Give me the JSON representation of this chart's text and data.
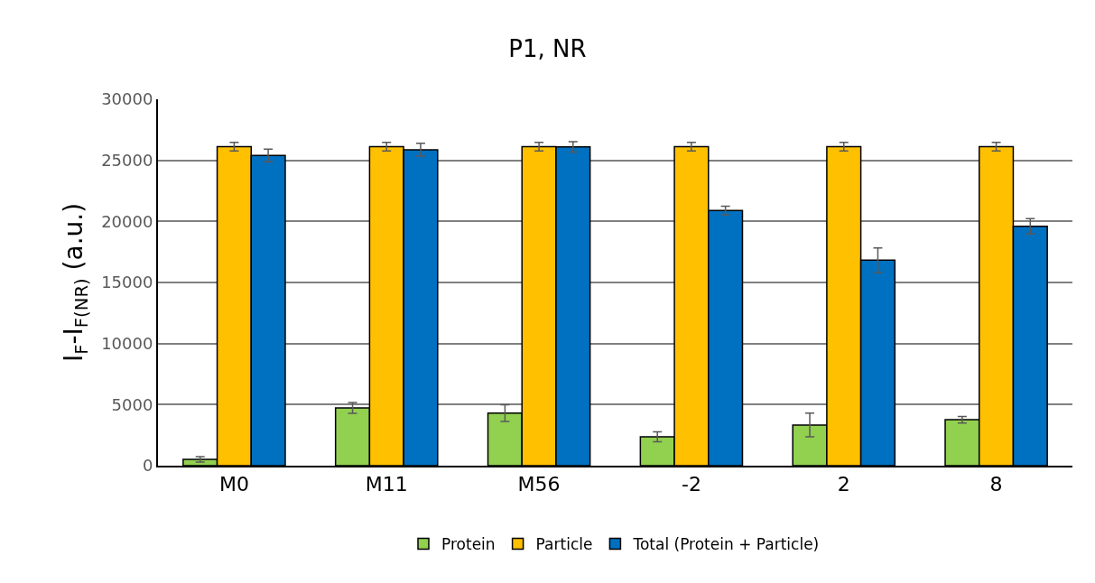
{
  "chart_data": {
    "type": "bar",
    "title": "P1, NR",
    "ylabel": "I$_{F}$-I$_{F(NR)}$ (a.u.)",
    "categories": [
      "M0",
      "M11",
      "M56",
      "-2",
      "2",
      "8"
    ],
    "series": [
      {
        "name": "Protein",
        "color": "#92d050",
        "values": [
          520,
          4730,
          4300,
          2360,
          3330,
          3760
        ],
        "errors": [
          220,
          450,
          680,
          410,
          970,
          270
        ]
      },
      {
        "name": "Particle",
        "color": "#ffc000",
        "values": [
          26120,
          26120,
          26120,
          26120,
          26120,
          26120
        ],
        "errors": [
          350,
          350,
          350,
          350,
          350,
          350
        ]
      },
      {
        "name": "Total (Protein + Particle)",
        "color": "#0070c0",
        "values": [
          25400,
          25870,
          26100,
          20900,
          16820,
          19600
        ],
        "errors": [
          520,
          520,
          420,
          350,
          1000,
          620
        ]
      }
    ],
    "ylim": [
      0,
      30000
    ],
    "yticks": [
      0,
      5000,
      10000,
      15000,
      20000,
      25000,
      30000
    ],
    "grid": "y",
    "legend": "bottom"
  }
}
